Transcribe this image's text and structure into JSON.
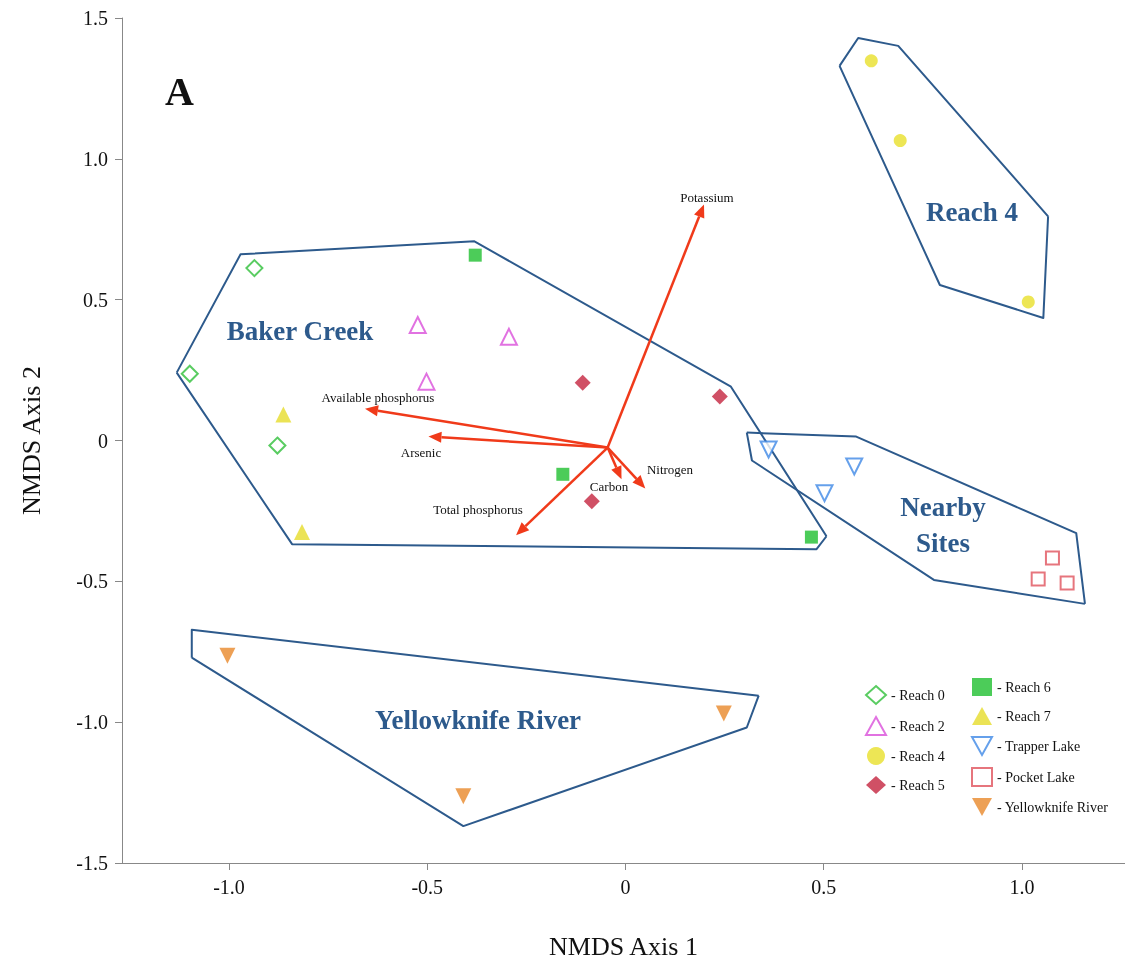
{
  "chart_data": {
    "type": "scatter",
    "title": "A",
    "xlabel": "NMDS Axis 1",
    "ylabel": "NMDS Axis 2",
    "xlim": [
      -1.27,
      1.26
    ],
    "ylim": [
      -1.5,
      1.5
    ],
    "xticks": [
      {
        "value": -1,
        "label": "-1.0"
      },
      -0.5,
      0,
      0.5,
      {
        "value": 1,
        "label": "1.0"
      }
    ],
    "yticks": [
      1.5,
      {
        "value": 1,
        "label": "1.0"
      },
      0.5,
      0,
      -0.5,
      {
        "value": -1,
        "label": "-1.0"
      },
      -1.5
    ],
    "grid": false,
    "legend": "bottom right",
    "series": [
      {
        "name": "- Reach 0",
        "color": "#2fbf3a",
        "marker": "diamond-open",
        "x": [
          -0.936,
          -1.099,
          -0.878
        ],
        "values": [
          0.612,
          0.237,
          -0.018
        ]
      },
      {
        "name": "- Reach 2",
        "color": "#d94fd9",
        "marker": "triangle-open",
        "x": [
          -0.524,
          -0.294,
          -0.502
        ],
        "values": [
          0.41,
          0.368,
          0.209
        ]
      },
      {
        "name": "- Reach 4",
        "color": "#e8e02a",
        "marker": "circle",
        "x": [
          0.62,
          0.693,
          1.016
        ],
        "values": [
          1.348,
          1.065,
          0.492
        ]
      },
      {
        "name": "- Reach 5",
        "color": "#c4243f",
        "marker": "diamond",
        "x": [
          -0.108,
          0.238,
          -0.085
        ],
        "values": [
          0.205,
          0.156,
          -0.216
        ]
      },
      {
        "name": "- Reach 6",
        "color": "#1fbf2f",
        "marker": "square",
        "x": [
          -0.379,
          -0.158,
          0.469
        ],
        "values": [
          0.658,
          -0.12,
          -0.343
        ]
      },
      {
        "name": "- Reach 7",
        "color": "#e6dc2a",
        "marker": "triangle",
        "x": [
          -0.863,
          -0.816
        ],
        "values": [
          0.092,
          -0.325
        ]
      },
      {
        "name": "- Trapper Lake",
        "color": "#3f88e6",
        "marker": "triangle-down-open",
        "x": [
          0.361,
          0.577,
          0.502
        ],
        "values": [
          -0.032,
          -0.092,
          -0.187
        ]
      },
      {
        "name": "- Pocket Lake",
        "color": "#e0525c",
        "marker": "square-open",
        "x": [
          1.077,
          1.041,
          1.114
        ],
        "values": [
          -0.417,
          -0.492,
          -0.506
        ]
      },
      {
        "name": "- Yellowknife River",
        "color": "#e8882a",
        "marker": "triangle-down",
        "x": [
          -1.004,
          0.248,
          -0.409
        ],
        "values": [
          -0.764,
          -0.969,
          -1.263
        ]
      },
      {
        "type": "line",
        "color": "#2d5a8c",
        "x": [
          -1.132,
          -0.971,
          -0.381,
          0.266,
          0.507
        ],
        "values": [
          0.241,
          0.661,
          0.707,
          0.191,
          -0.34
        ]
      },
      {
        "type": "line",
        "color": "#2d5a8c",
        "x": [
          -1.132,
          -0.841,
          0.482,
          0.507
        ],
        "values": [
          0.241,
          -0.368,
          -0.386,
          -0.34
        ]
      },
      {
        "type": "line",
        "color": "#2d5a8c",
        "x": [
          0.54,
          0.587,
          0.688,
          1.066
        ],
        "values": [
          1.33,
          1.429,
          1.401,
          0.796
        ]
      },
      {
        "type": "line",
        "color": "#2d5a8c",
        "x": [
          0.54,
          0.793,
          1.054,
          1.066
        ],
        "values": [
          1.33,
          0.552,
          0.435,
          0.796
        ]
      },
      {
        "type": "line",
        "color": "#2d5a8c",
        "x": [
          0.306,
          0.582,
          1.137,
          1.159
        ],
        "values": [
          0.028,
          0.014,
          -0.329,
          -0.58
        ]
      },
      {
        "type": "line",
        "color": "#2d5a8c",
        "x": [
          0.306,
          0.319,
          0.778,
          1.159
        ],
        "values": [
          0.028,
          -0.071,
          -0.495,
          -0.58
        ]
      },
      {
        "type": "line",
        "color": "#2d5a8c",
        "x": [
          -1.094,
          -1.094,
          0.336
        ],
        "values": [
          -0.771,
          -0.672,
          -0.906
        ]
      },
      {
        "type": "line",
        "color": "#2d5a8c",
        "x": [
          -1.094,
          -0.409,
          0.306,
          0.336
        ],
        "values": [
          -0.771,
          -1.369,
          -1.019,
          -0.906
        ]
      }
    ],
    "annotations": [
      "Baker Creek",
      "Reach 4",
      "Nearby\nSites",
      "Yellowknife River",
      "Potassium",
      "Available phosphorus",
      "Arsenic",
      "Total phosphorus",
      "Carbon",
      "Nitrogen"
    ]
  }
}
